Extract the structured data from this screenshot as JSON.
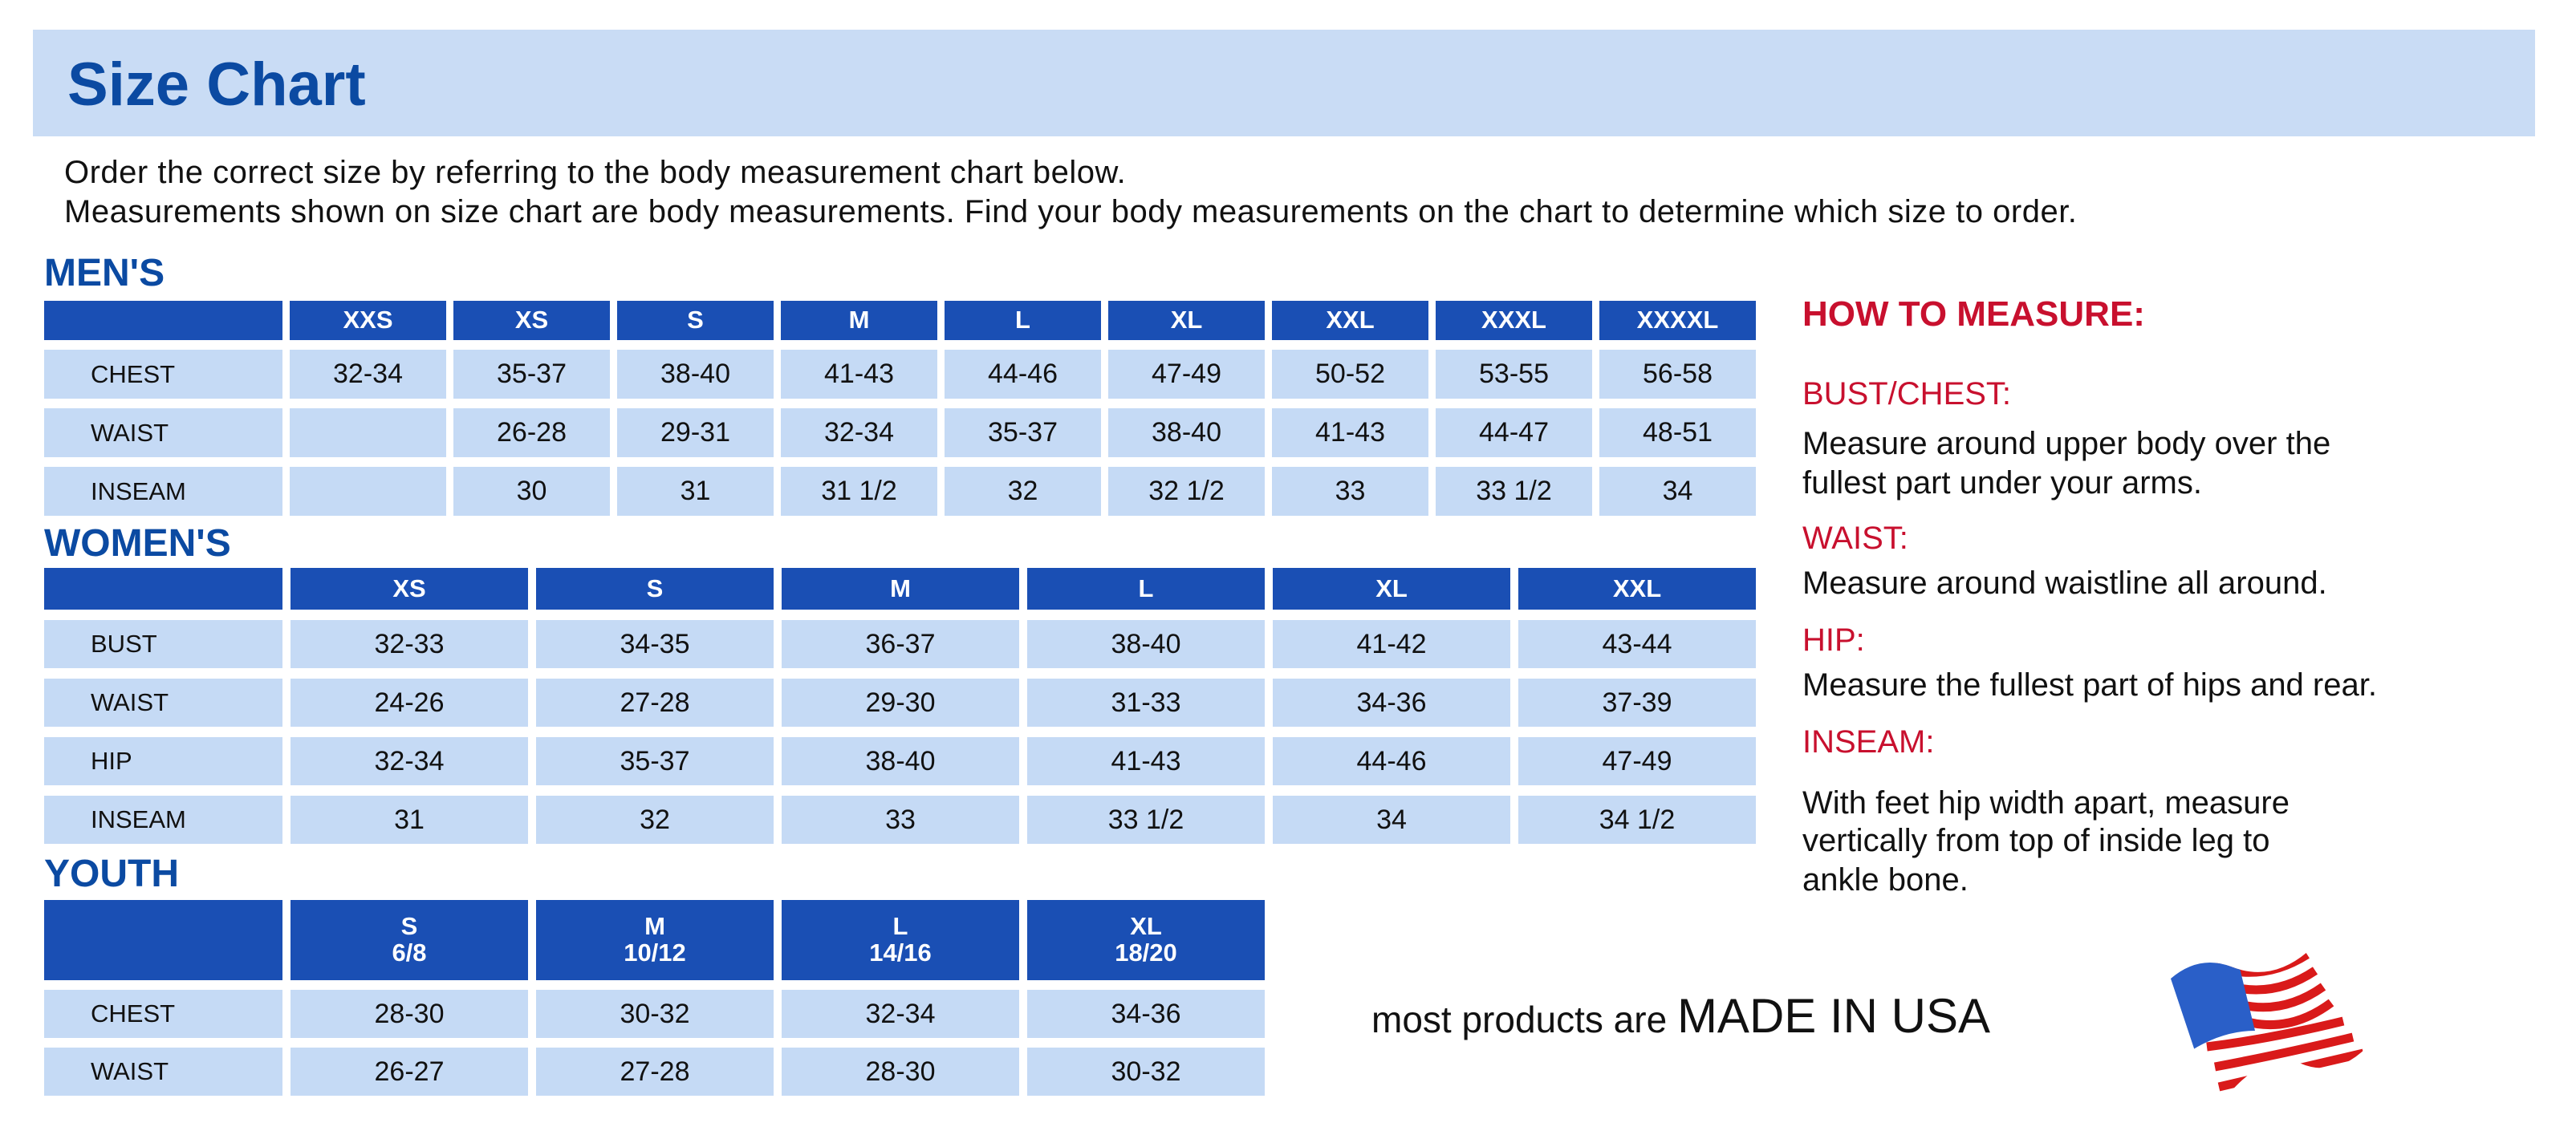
{
  "header": {
    "title": "Size Chart"
  },
  "intro": [
    "Order the correct size by referring to the body measurement chart below.",
    "Measurements shown on size chart are body measurements.  Find your body measurements on the chart to determine which size to order."
  ],
  "colors": {
    "header_blue": "#1a4fb4",
    "cell_blue": "#c5daf5",
    "band": "#c9dcf5",
    "title_blue": "#0b4aa2",
    "accent_red": "#c8102e"
  },
  "mens": {
    "label": "MEN'S",
    "sizes": [
      "XXS",
      "XS",
      "S",
      "M",
      "L",
      "XL",
      "XXL",
      "XXXL",
      "XXXXL"
    ],
    "rows": [
      {
        "name": "CHEST",
        "values": [
          "32-34",
          "35-37",
          "38-40",
          "41-43",
          "44-46",
          "47-49",
          "50-52",
          "53-55",
          "56-58"
        ]
      },
      {
        "name": "WAIST",
        "values": [
          "",
          "26-28",
          "29-31",
          "32-34",
          "35-37",
          "38-40",
          "41-43",
          "44-47",
          "48-51"
        ]
      },
      {
        "name": "INSEAM",
        "values": [
          "",
          "30",
          "31",
          "31 1/2",
          "32",
          "32 1/2",
          "33",
          "33 1/2",
          "34"
        ]
      }
    ]
  },
  "womens": {
    "label": "WOMEN'S",
    "sizes": [
      "XS",
      "S",
      "M",
      "L",
      "XL",
      "XXL"
    ],
    "rows": [
      {
        "name": "BUST",
        "values": [
          "32-33",
          "34-35",
          "36-37",
          "38-40",
          "41-42",
          "43-44"
        ]
      },
      {
        "name": "WAIST",
        "values": [
          "24-26",
          "27-28",
          "29-30",
          "31-33",
          "34-36",
          "37-39"
        ]
      },
      {
        "name": "HIP",
        "values": [
          "32-34",
          "35-37",
          "38-40",
          "41-43",
          "44-46",
          "47-49"
        ]
      },
      {
        "name": "INSEAM",
        "values": [
          "31",
          "32",
          "33",
          "33 1/2",
          "34",
          "34 1/2"
        ]
      }
    ]
  },
  "youth": {
    "label": "YOUTH",
    "sizes": [
      "S",
      "M",
      "L",
      "XL"
    ],
    "ages": [
      "6/8",
      "10/12",
      "14/16",
      "18/20"
    ],
    "rows": [
      {
        "name": "CHEST",
        "values": [
          "28-30",
          "30-32",
          "32-34",
          "34-36"
        ]
      },
      {
        "name": "WAIST",
        "values": [
          "26-27",
          "27-28",
          "28-30",
          "30-32"
        ]
      }
    ]
  },
  "how_to_measure": {
    "title": "HOW TO MEASURE:",
    "items": [
      {
        "heading": "BUST/CHEST:",
        "text": [
          "Measure around upper body over the",
          "fullest part under your arms."
        ]
      },
      {
        "heading": "WAIST:",
        "text": [
          "Measure around waistline all around."
        ]
      },
      {
        "heading": "HIP:",
        "text": [
          "Measure the fullest part of hips and rear."
        ]
      },
      {
        "heading": "INSEAM:",
        "text": [
          "With feet hip width apart, measure",
          "vertically from top of inside leg to",
          "ankle bone."
        ]
      }
    ]
  },
  "footer": {
    "prefix": "most products are",
    "emphasis": "MADE IN USA",
    "flag_icon": "usa-flag-icon"
  }
}
